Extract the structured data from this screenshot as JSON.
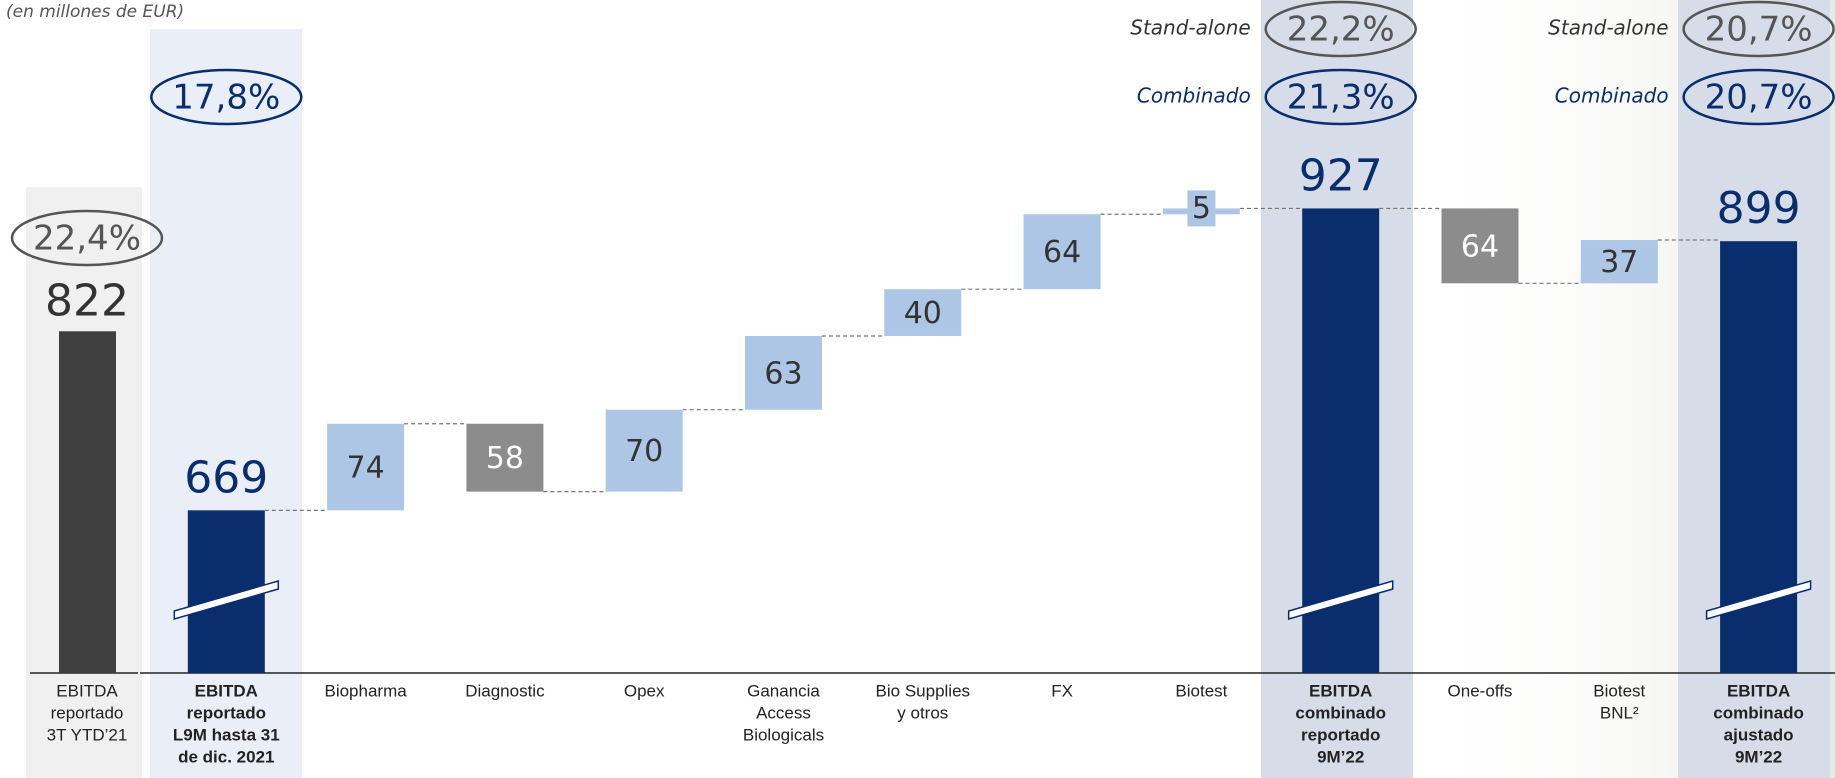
{
  "chart_data": {
    "type": "waterfall",
    "subtitle": "(en millones de EUR)",
    "categories": [
      [
        "EBITDA",
        "reportado",
        "3T YTD’21"
      ],
      [
        "EBITDA",
        "reportado",
        "L9M hasta 31",
        "de dic. 2021"
      ],
      [
        "Biopharma"
      ],
      [
        "Diagnostic"
      ],
      [
        "Opex"
      ],
      [
        "Ganancia",
        "Access",
        "Biologicals"
      ],
      [
        "Bio Supplies",
        "y otros"
      ],
      [
        "FX"
      ],
      [
        "Biotest"
      ],
      [
        "EBITDA",
        "combinado",
        "reportado",
        "9M’22"
      ],
      [
        "One-offs"
      ],
      [
        "Biotest",
        "BNL²"
      ],
      [
        "EBITDA",
        "combinado",
        "ajustado",
        "9M’22"
      ]
    ],
    "values": [
      822,
      669,
      74,
      -58,
      70,
      63,
      40,
      64,
      5,
      927,
      -64,
      37,
      899
    ],
    "value_labels": [
      "822",
      "669",
      "74",
      "58",
      "70",
      "63",
      "40",
      "64",
      "5",
      "927",
      "64",
      "37",
      "899"
    ],
    "kinds": [
      "reference",
      "total",
      "delta",
      "delta",
      "delta",
      "delta",
      "delta",
      "delta",
      "delta",
      "total",
      "delta",
      "delta",
      "total"
    ],
    "colors": {
      "reference": "#3f3f3f",
      "total": "#0a2d6e",
      "increase": "#adc6e5",
      "decrease": "#8c8c8c"
    },
    "ylim": [
      530,
      1000
    ],
    "standalone_label": "Stand-alone",
    "combined_label": "Combinado",
    "standalone_margin": [
      "22,4%",
      null,
      null,
      null,
      null,
      null,
      null,
      null,
      null,
      "22,2%",
      null,
      null,
      "20,7%"
    ],
    "combined_margin": [
      null,
      "17,8%",
      null,
      null,
      null,
      null,
      null,
      null,
      null,
      "21,3%",
      null,
      null,
      "20,7%"
    ]
  }
}
